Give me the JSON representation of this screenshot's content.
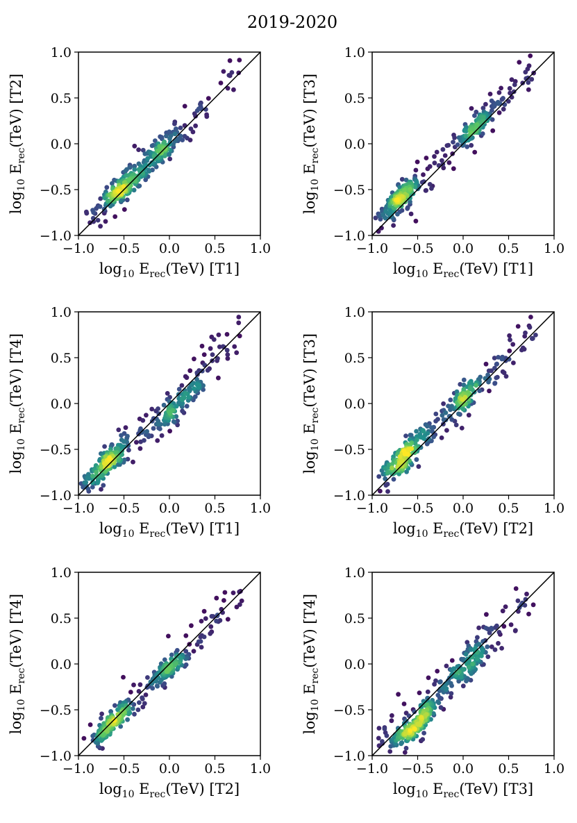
{
  "figure": {
    "title": "2019-2020"
  },
  "label_parts": {
    "log": "log",
    "base": "10",
    "E": "E",
    "sub": "rec",
    "unit": "(TeV)"
  },
  "chart_data": [
    {
      "type": "scatter",
      "title": "",
      "xlabel": "log10 Erec(TeV) [T1]",
      "ylabel": "log10 Erec(TeV) [T2]",
      "x_tel": "[T1]",
      "y_tel": "[T2]",
      "xlim": [
        -1.0,
        1.0
      ],
      "ylim": [
        -1.0,
        1.0
      ],
      "xticks": [
        "−1.0",
        "−0.5",
        "0.0",
        "0.5",
        "1.0"
      ],
      "yticks": [
        "−1.0",
        "−0.5",
        "0.0",
        "0.5",
        "1.0"
      ],
      "diagonal": "y = x",
      "clusters": [
        [
          -0.52,
          -0.48
        ],
        [
          -0.1,
          -0.08
        ]
      ],
      "spread": 0.1,
      "n_points": 330,
      "seed": 11
    },
    {
      "type": "scatter",
      "title": "",
      "xlabel": "log10 Erec(TeV) [T1]",
      "ylabel": "log10 Erec(TeV) [T3]",
      "x_tel": "[T1]",
      "y_tel": "[T3]",
      "xlim": [
        -1.0,
        1.0
      ],
      "ylim": [
        -1.0,
        1.0
      ],
      "xticks": [
        "−1.0",
        "−0.5",
        "0.0",
        "0.5",
        "1.0"
      ],
      "yticks": [
        "−1.0",
        "−0.5",
        "0.0",
        "0.5",
        "1.0"
      ],
      "diagonal": "y = x",
      "clusters": [
        [
          -0.7,
          -0.6
        ],
        [
          0.15,
          0.2
        ]
      ],
      "spread": 0.09,
      "n_points": 340,
      "seed": 23
    },
    {
      "type": "scatter",
      "title": "",
      "xlabel": "log10 Erec(TeV) [T1]",
      "ylabel": "log10 Erec(TeV) [T4]",
      "x_tel": "[T1]",
      "y_tel": "[T4]",
      "xlim": [
        -1.0,
        1.0
      ],
      "ylim": [
        -1.0,
        1.0
      ],
      "xticks": [
        "−1.0",
        "−0.5",
        "0.0",
        "0.5",
        "1.0"
      ],
      "yticks": [
        "−1.0",
        "−0.5",
        "0.0",
        "0.5",
        "1.0"
      ],
      "diagonal": "y = x",
      "clusters": [
        [
          -0.7,
          -0.68
        ],
        [
          0.1,
          0.0
        ]
      ],
      "spread": 0.11,
      "n_points": 330,
      "seed": 37
    },
    {
      "type": "scatter",
      "title": "",
      "xlabel": "log10 Erec(TeV) [T2]",
      "ylabel": "log10 Erec(TeV) [T3]",
      "x_tel": "[T2]",
      "y_tel": "[T3]",
      "xlim": [
        -1.0,
        1.0
      ],
      "ylim": [
        -1.0,
        1.0
      ],
      "xticks": [
        "−1.0",
        "−0.5",
        "0.0",
        "0.5",
        "1.0"
      ],
      "yticks": [
        "−1.0",
        "−0.5",
        "0.0",
        "0.5",
        "1.0"
      ],
      "diagonal": "y = x",
      "clusters": [
        [
          -0.65,
          -0.58
        ],
        [
          0.05,
          0.1
        ]
      ],
      "spread": 0.1,
      "n_points": 320,
      "seed": 53
    },
    {
      "type": "scatter",
      "title": "",
      "xlabel": "log10 Erec(TeV) [T2]",
      "ylabel": "log10 Erec(TeV) [T4]",
      "x_tel": "[T2]",
      "y_tel": "[T4]",
      "xlim": [
        -1.0,
        1.0
      ],
      "ylim": [
        -1.0,
        1.0
      ],
      "xticks": [
        "−1.0",
        "−0.5",
        "0.0",
        "0.5",
        "1.0"
      ],
      "yticks": [
        "−1.0",
        "−0.5",
        "0.0",
        "0.5",
        "1.0"
      ],
      "diagonal": "y = x",
      "clusters": [
        [
          -0.6,
          -0.62
        ],
        [
          0.0,
          -0.05
        ]
      ],
      "spread": 0.09,
      "n_points": 330,
      "seed": 71
    },
    {
      "type": "scatter",
      "title": "",
      "xlabel": "log10 Erec(TeV) [T3]",
      "ylabel": "log10 Erec(TeV) [T4]",
      "x_tel": "[T3]",
      "y_tel": "[T4]",
      "xlim": [
        -1.0,
        1.0
      ],
      "ylim": [
        -1.0,
        1.0
      ],
      "xticks": [
        "−1.0",
        "−0.5",
        "0.0",
        "0.5",
        "1.0"
      ],
      "yticks": [
        "−1.0",
        "−0.5",
        "0.0",
        "0.5",
        "1.0"
      ],
      "diagonal": "y = x",
      "clusters": [
        [
          -0.52,
          -0.65
        ],
        [
          0.05,
          0.0
        ]
      ],
      "spread": 0.11,
      "n_points": 360,
      "seed": 89
    }
  ],
  "colormap": [
    "#440154",
    "#3b528b",
    "#21918c",
    "#5ec962",
    "#fde725"
  ]
}
